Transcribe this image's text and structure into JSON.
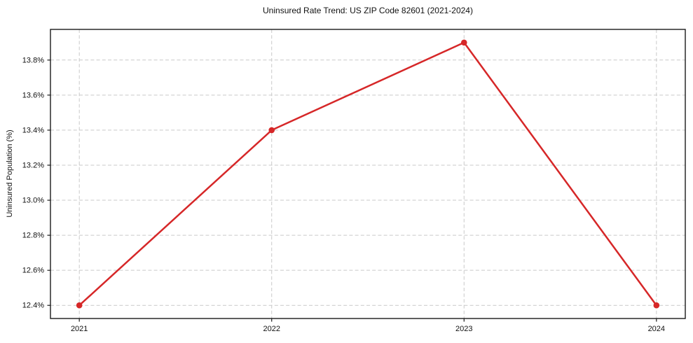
{
  "title": "Uninsured Rate Trend: US ZIP Code 82601 (2021-2024)",
  "chart_data": {
    "type": "line",
    "title": "Uninsured Rate Trend: US ZIP Code 82601 (2021-2024)",
    "xlabel": "",
    "ylabel": "Uninsured Population (%)",
    "x": [
      2021,
      2022,
      2023,
      2024
    ],
    "values": [
      12.4,
      13.4,
      13.9,
      12.4
    ],
    "xtick_labels": [
      "2021",
      "2022",
      "2023",
      "2024"
    ],
    "yticks": [
      12.4,
      12.6,
      12.8,
      13.0,
      13.2,
      13.4,
      13.6,
      13.8
    ],
    "ytick_labels": [
      "12.4%",
      "12.6%",
      "12.8%",
      "13.0%",
      "13.2%",
      "13.4%",
      "13.6%",
      "13.8%"
    ],
    "xlim": [
      2020.85,
      2024.15
    ],
    "ylim": [
      12.325,
      13.975
    ],
    "grid": true,
    "legend_position": "none",
    "line_color": "#d62728",
    "marker_color": "#d62728",
    "grid_color": "#c9c9c9",
    "spine_color": "#1a1a1a",
    "background_color": "#ffffff"
  }
}
